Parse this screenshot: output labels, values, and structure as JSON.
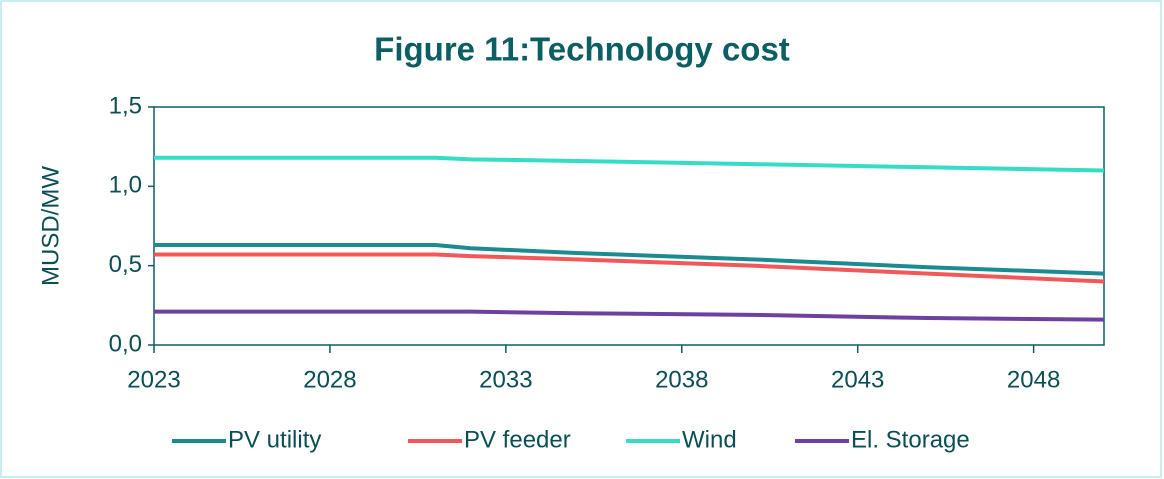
{
  "chart_data": {
    "type": "line",
    "title": "Figure 11:Technology cost",
    "y_label": "MUSD/MW",
    "x": [
      2023,
      2031,
      2032,
      2035,
      2040,
      2045,
      2050
    ],
    "xlim": [
      2023,
      2050
    ],
    "xticks": [
      2023,
      2028,
      2033,
      2038,
      2043,
      2048
    ],
    "ylim": [
      0,
      1.5
    ],
    "yticks": [
      {
        "value": 0,
        "label": "0,0"
      },
      {
        "value": 0.5,
        "label": "0,5"
      },
      {
        "value": 1.0,
        "label": "1,0"
      },
      {
        "value": 1.5,
        "label": "1,5"
      }
    ],
    "series": [
      {
        "name": "PV utility",
        "color": "#1b8b90",
        "values": [
          0.63,
          0.63,
          0.61,
          0.58,
          0.54,
          0.49,
          0.45
        ]
      },
      {
        "name": "PV feeder",
        "color": "#f2585a",
        "values": [
          0.57,
          0.57,
          0.56,
          0.54,
          0.5,
          0.45,
          0.4
        ]
      },
      {
        "name": "Wind",
        "color": "#35dcc6",
        "values": [
          1.18,
          1.18,
          1.17,
          1.16,
          1.14,
          1.12,
          1.1
        ]
      },
      {
        "name": "El. Storage",
        "color": "#7040a0",
        "values": [
          0.21,
          0.21,
          0.21,
          0.2,
          0.19,
          0.17,
          0.16
        ]
      }
    ]
  }
}
